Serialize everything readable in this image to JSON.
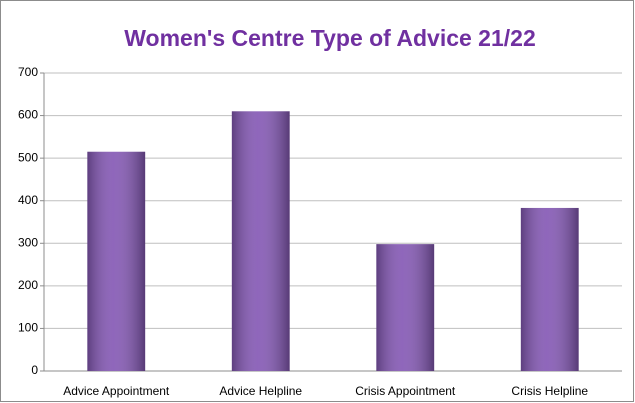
{
  "chart_data": {
    "type": "bar",
    "title": "Women's Centre Type of Advice 21/22",
    "categories": [
      "Advice Appointment",
      "Advice Helpline",
      "Crisis Appointment",
      "Crisis Helpline"
    ],
    "values": [
      515,
      610,
      298,
      383
    ],
    "color": "#8559b5",
    "ylim": [
      0,
      700
    ],
    "yticks": [
      0,
      100,
      200,
      300,
      400,
      500,
      600,
      700
    ],
    "grid": true
  }
}
